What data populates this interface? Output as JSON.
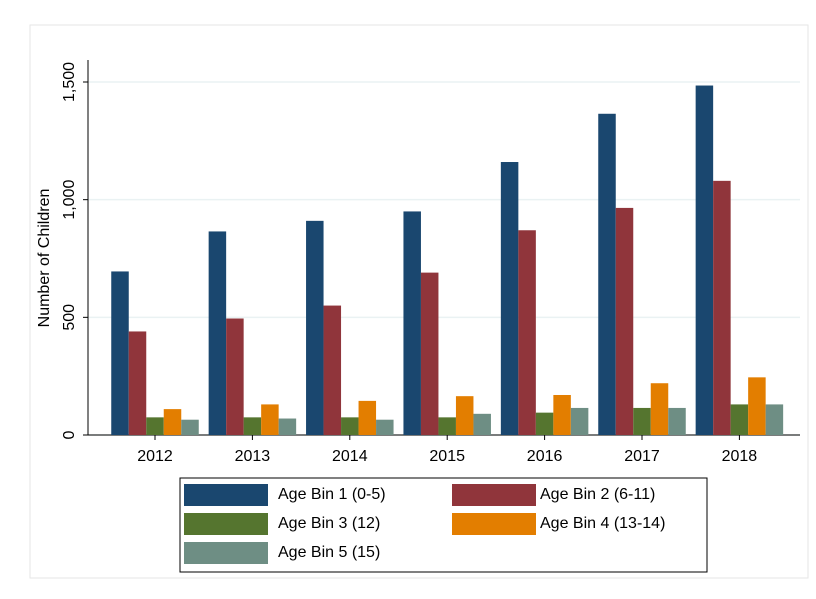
{
  "chart_data": {
    "type": "bar",
    "y_label": "Number of Children",
    "categories": [
      "2012",
      "2013",
      "2014",
      "2015",
      "2016",
      "2017",
      "2018"
    ],
    "series": [
      {
        "name": "Age Bin 1 (0-5)",
        "color": "#1a476f",
        "values": [
          695,
          865,
          910,
          950,
          1160,
          1365,
          1485
        ]
      },
      {
        "name": "Age Bin 2 (6-11)",
        "color": "#90353b",
        "values": [
          440,
          495,
          550,
          690,
          870,
          965,
          1080
        ]
      },
      {
        "name": "Age Bin 3 (12)",
        "color": "#55752f",
        "values": [
          75,
          75,
          75,
          75,
          95,
          115,
          130
        ]
      },
      {
        "name": "Age Bin 4 (13-14)",
        "color": "#e37e00",
        "values": [
          110,
          130,
          145,
          165,
          170,
          220,
          245
        ]
      },
      {
        "name": "Age Bin 5 (15)",
        "color": "#6e8e84",
        "values": [
          65,
          70,
          65,
          90,
          115,
          115,
          130
        ]
      }
    ],
    "ylim": [
      0,
      1500
    ],
    "yticks": [
      0,
      500,
      {
        "value": 1000,
        "label": "1,000"
      },
      {
        "value": 1500,
        "label": "1,500"
      }
    ],
    "grid": true,
    "legend": "bottom"
  }
}
